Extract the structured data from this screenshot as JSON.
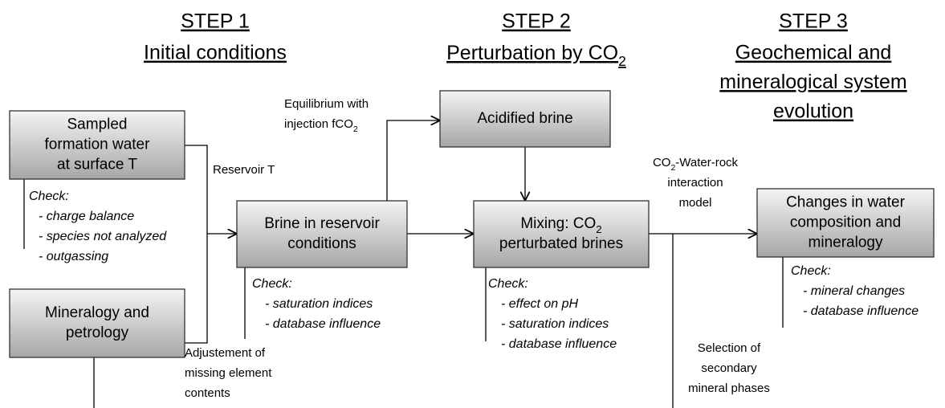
{
  "steps": [
    {
      "title": "STEP 1",
      "lines": [
        "Initial conditions"
      ]
    },
    {
      "title": "STEP 2",
      "lines": [
        [
          "Perturbation by CO",
          {
            "sub": "2"
          }
        ]
      ]
    },
    {
      "title": "STEP 3",
      "lines": [
        "Geochemical and",
        "mineralogical system",
        "evolution"
      ]
    }
  ],
  "boxes": [
    {
      "lines": [
        "Sampled",
        "formation water",
        "at surface T"
      ]
    },
    {
      "lines": [
        "Mineralogy and",
        "petrology"
      ]
    },
    {
      "lines": [
        "Brine in reservoir",
        "conditions"
      ]
    },
    {
      "lines": [
        "Acidified brine"
      ]
    },
    {
      "lines": [
        [
          "Mixing: CO",
          {
            "sub": "2"
          }
        ],
        "perturbated brines"
      ]
    },
    {
      "lines": [
        "Changes in water",
        "composition and",
        "mineralogy"
      ]
    }
  ],
  "checks": [
    {
      "title": "Check:",
      "items": [
        "- charge balance",
        "- species not analyzed",
        "- outgassing"
      ]
    },
    {
      "title": "Check:",
      "items": [
        "- saturation indices",
        "- database influence"
      ]
    },
    {
      "title": "Check:",
      "items": [
        "- effect on pH",
        "- saturation indices",
        "- database influence"
      ]
    },
    {
      "title": "Check:",
      "items": [
        "- mineral changes",
        "- database influence"
      ]
    }
  ],
  "labels": [
    {
      "lines": [
        "Reservoir T"
      ]
    },
    {
      "lines": [
        "Equilibrium with",
        [
          "injection fCO",
          {
            "sub": "2"
          }
        ]
      ]
    },
    {
      "lines": [
        "Adjustement of",
        "missing element",
        "contents"
      ]
    },
    {
      "lines": [
        [
          "CO",
          {
            "sub": "2"
          },
          "-Water-rock"
        ],
        "interaction",
        "model"
      ]
    },
    {
      "lines": [
        "Selection of",
        "secondary",
        "mineral phases"
      ]
    }
  ]
}
